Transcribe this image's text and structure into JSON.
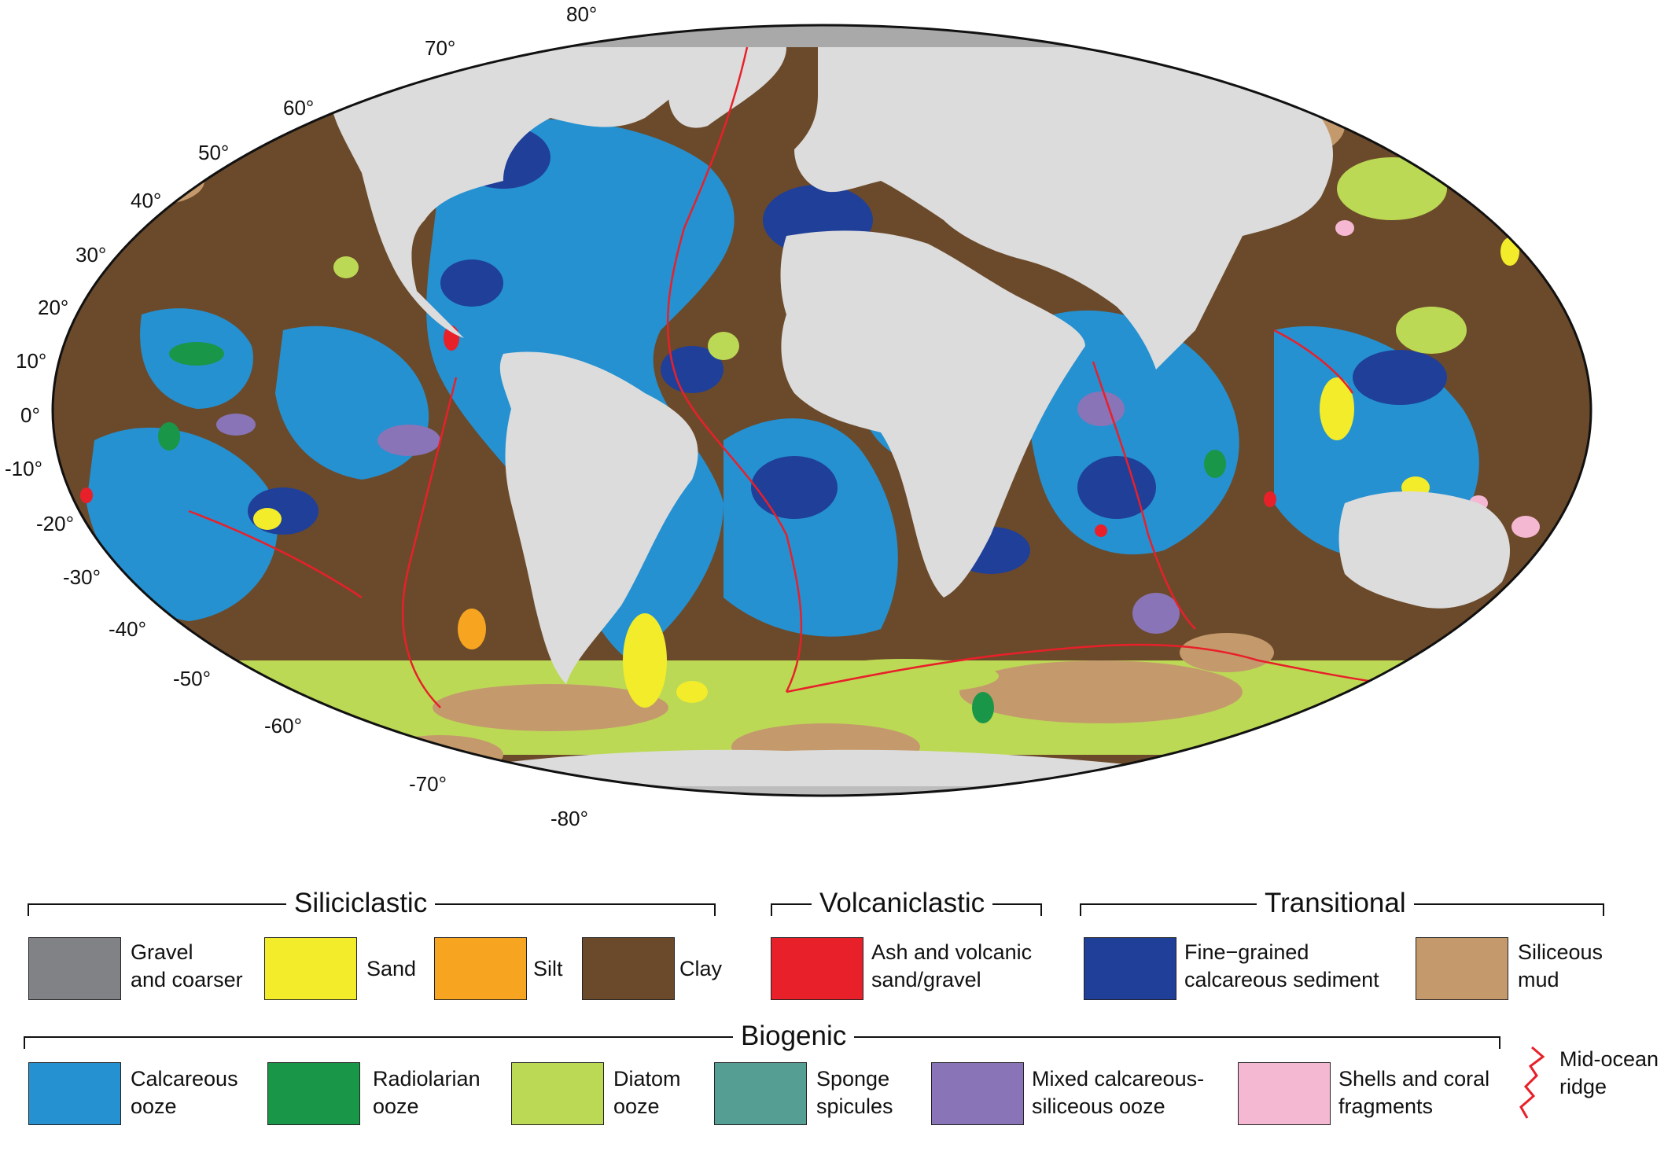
{
  "map": {
    "projection": "Mollweide",
    "colors": {
      "ocean_default": "#6b4a2b",
      "land": "#dcdcdc",
      "polar_ice": "#a9a9a9",
      "ridge": "#e8202a"
    },
    "latitude_labels": {
      "left": [
        "70°",
        "60°",
        "50°",
        "40°",
        "30°",
        "20°",
        "10°",
        "0°",
        "-10°",
        "-20°",
        "-30°",
        "-40°",
        "-50°",
        "-60°",
        "-70°"
      ],
      "top": "80°",
      "bottom": "-80°"
    }
  },
  "legend": {
    "groups": {
      "siliciclastic": "Siliciclastic",
      "volcaniclastic": "Volcaniclastic",
      "transitional": "Transitional",
      "biogenic": "Biogenic"
    },
    "items": [
      {
        "id": "gravel",
        "label": "Gravel\nand coarser",
        "color": "#808285"
      },
      {
        "id": "sand",
        "label": "Sand",
        "color": "#f2ec2a"
      },
      {
        "id": "silt",
        "label": "Silt",
        "color": "#f7a520"
      },
      {
        "id": "clay",
        "label": "Clay",
        "color": "#6b4a2b"
      },
      {
        "id": "ash",
        "label": "Ash and volcanic\nsand/gravel",
        "color": "#e8202a"
      },
      {
        "id": "fine_calc",
        "label": "Fine−grained\ncalcareous sediment",
        "color": "#1f3f99"
      },
      {
        "id": "siliceous_mud",
        "label": "Siliceous\nmud",
        "color": "#c49a6c"
      },
      {
        "id": "calc_ooze",
        "label": "Calcareous\nooze",
        "color": "#2591d1"
      },
      {
        "id": "radiolarian",
        "label": "Radiolarian\nooze",
        "color": "#1a9648"
      },
      {
        "id": "diatom",
        "label": "Diatom\nooze",
        "color": "#bcd955"
      },
      {
        "id": "sponge",
        "label": "Sponge\nspicules",
        "color": "#559e93"
      },
      {
        "id": "mixed",
        "label": "Mixed calcareous-\nsiliceous ooze",
        "color": "#8874b7"
      },
      {
        "id": "shells",
        "label": "Shells and coral\nfragments",
        "color": "#f5b8d3"
      }
    ],
    "ridge_label": "Mid-ocean\nridge"
  }
}
